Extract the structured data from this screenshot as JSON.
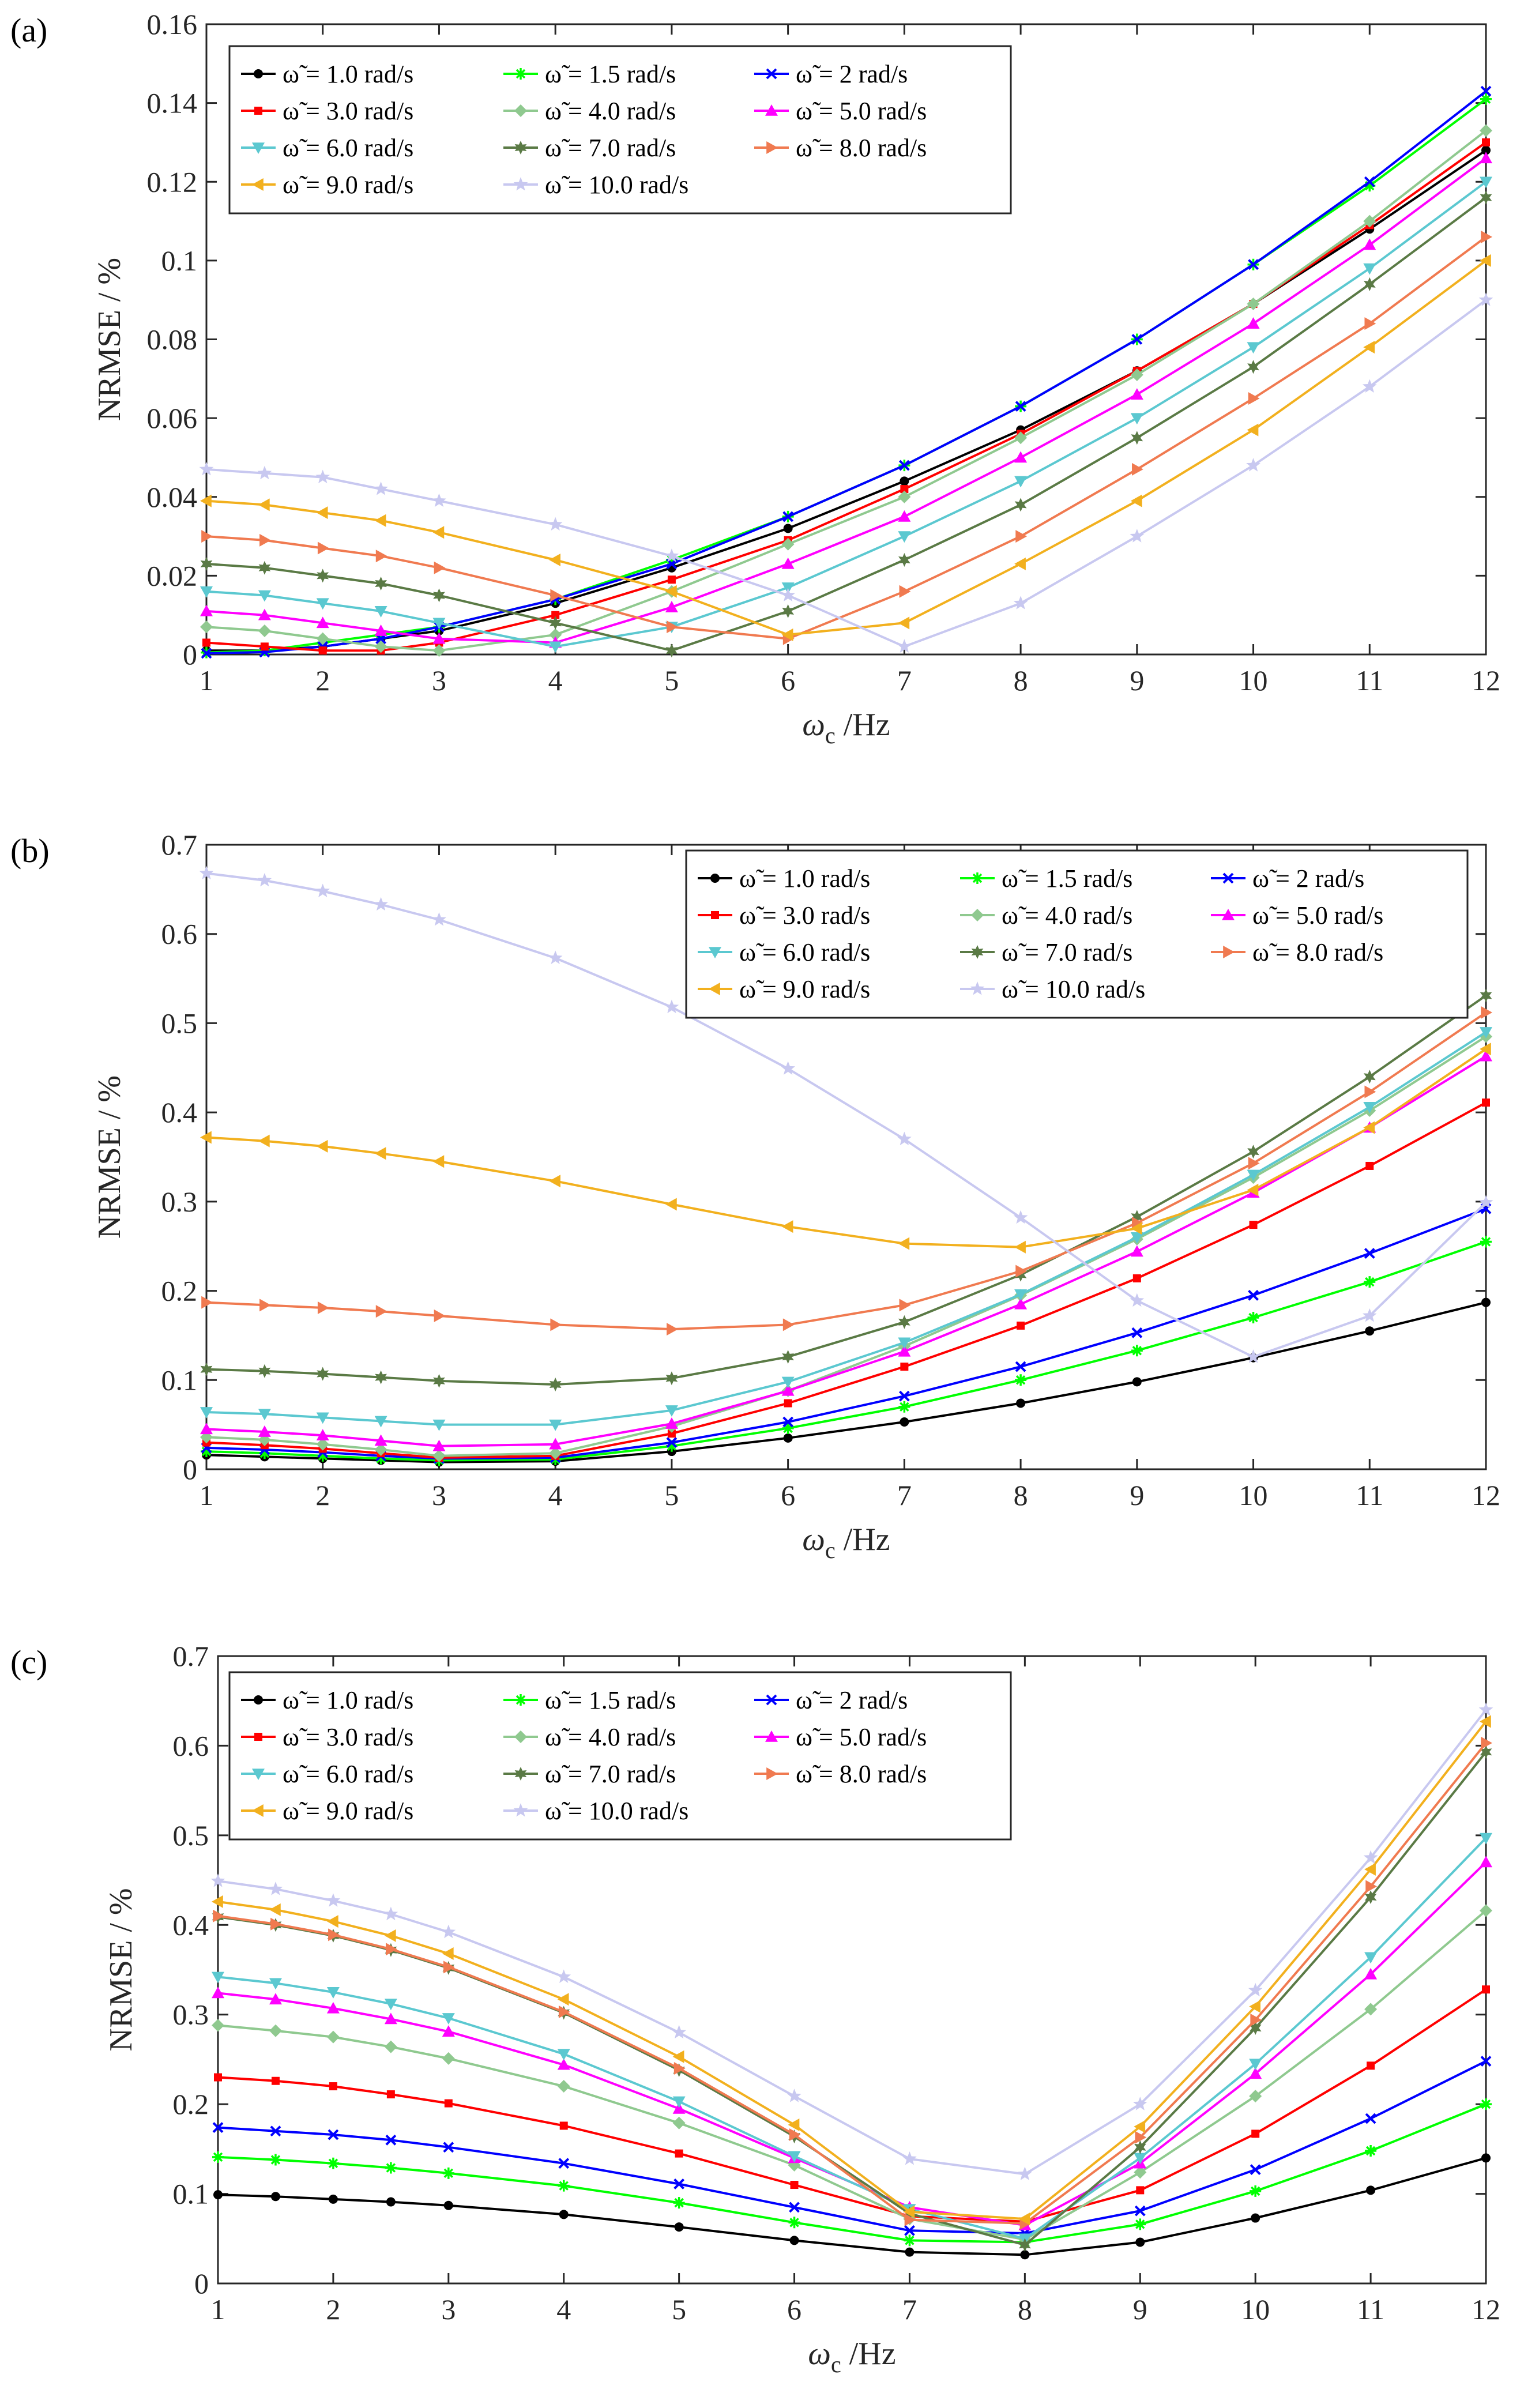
{
  "chart_data": [
    {
      "type": "line",
      "panel_label": "(a)",
      "xlabel": "ω_c /Hz",
      "xlabel_main": "ω",
      "xlabel_sub": "c",
      "xlabel_unit": " /Hz",
      "ylabel": "NRMSE / %",
      "xlim": [
        1,
        12
      ],
      "ylim": [
        0,
        0.16
      ],
      "xticks": [
        1,
        2,
        3,
        4,
        5,
        6,
        7,
        8,
        9,
        10,
        11,
        12
      ],
      "xtick_labels": [
        "1",
        "2",
        "3",
        "4",
        "5",
        "6",
        "7",
        "8",
        "9",
        "10",
        "11",
        "12"
      ],
      "yticks": [
        0,
        0.02,
        0.04,
        0.06,
        0.08,
        0.1,
        0.12,
        0.14,
        0.16
      ],
      "ytick_labels": [
        "0",
        "0.02",
        "0.04",
        "0.06",
        "0.08",
        "0.1",
        "0.12",
        "0.14",
        "0.16"
      ],
      "legend_position": "top-left",
      "x": [
        1,
        1.5,
        2,
        2.5,
        3,
        4,
        5,
        6,
        7,
        8,
        9,
        10,
        11,
        12
      ],
      "series": [
        {
          "name": "ω̃ = 1.0 rad/s",
          "color": "#000000",
          "marker": "dot",
          "values": [
            0.001,
            0.001,
            0.002,
            0.004,
            0.006,
            0.013,
            0.022,
            0.032,
            0.044,
            0.057,
            0.072,
            0.089,
            0.108,
            0.128
          ]
        },
        {
          "name": "ω̃ = 1.5 rad/s",
          "color": "#00ff00",
          "marker": "star",
          "values": [
            0.0005,
            0.001,
            0.003,
            0.005,
            0.007,
            0.014,
            0.024,
            0.035,
            0.048,
            0.063,
            0.08,
            0.099,
            0.119,
            0.141
          ]
        },
        {
          "name": "ω̃ = 2 rad/s",
          "color": "#0000ff",
          "marker": "x",
          "values": [
            0.0003,
            0.0006,
            0.002,
            0.004,
            0.007,
            0.014,
            0.023,
            0.035,
            0.048,
            0.063,
            0.08,
            0.099,
            0.12,
            0.143
          ]
        },
        {
          "name": "ω̃ = 3.0 rad/s",
          "color": "#ff0000",
          "marker": "square",
          "values": [
            0.003,
            0.002,
            0.001,
            0.001,
            0.003,
            0.01,
            0.019,
            0.029,
            0.042,
            0.056,
            0.072,
            0.089,
            0.109,
            0.13
          ]
        },
        {
          "name": "ω̃ = 4.0 rad/s",
          "color": "#8fc98f",
          "marker": "diamond",
          "values": [
            0.007,
            0.006,
            0.004,
            0.002,
            0.001,
            0.005,
            0.016,
            0.028,
            0.04,
            0.055,
            0.071,
            0.089,
            0.11,
            0.133
          ]
        },
        {
          "name": "ω̃ = 5.0 rad/s",
          "color": "#ff00ff",
          "marker": "triangle-up",
          "values": [
            0.011,
            0.01,
            0.008,
            0.006,
            0.004,
            0.003,
            0.012,
            0.023,
            0.035,
            0.05,
            0.066,
            0.084,
            0.104,
            0.126
          ]
        },
        {
          "name": "ω̃ = 6.0 rad/s",
          "color": "#5bc8d0",
          "marker": "triangle-down",
          "values": [
            0.016,
            0.015,
            0.013,
            0.011,
            0.008,
            0.002,
            0.007,
            0.017,
            0.03,
            0.044,
            0.06,
            0.078,
            0.098,
            0.12
          ]
        },
        {
          "name": "ω̃ = 7.0 rad/s",
          "color": "#5a7a45",
          "marker": "hexagram",
          "values": [
            0.023,
            0.022,
            0.02,
            0.018,
            0.015,
            0.008,
            0.001,
            0.011,
            0.024,
            0.038,
            0.055,
            0.073,
            0.094,
            0.116
          ]
        },
        {
          "name": "ω̃ = 8.0 rad/s",
          "color": "#f07a50",
          "marker": "triangle-right",
          "values": [
            0.03,
            0.029,
            0.027,
            0.025,
            0.022,
            0.015,
            0.007,
            0.004,
            0.016,
            0.03,
            0.047,
            0.065,
            0.084,
            0.106
          ]
        },
        {
          "name": "ω̃ = 9.0 rad/s",
          "color": "#f2b01e",
          "marker": "triangle-left",
          "values": [
            0.039,
            0.038,
            0.036,
            0.034,
            0.031,
            0.024,
            0.016,
            0.005,
            0.008,
            0.023,
            0.039,
            0.057,
            0.078,
            0.1
          ]
        },
        {
          "name": "ω̃ = 10.0 rad/s",
          "color": "#c8c8f0",
          "marker": "pentagram",
          "values": [
            0.047,
            0.046,
            0.045,
            0.042,
            0.039,
            0.033,
            0.025,
            0.015,
            0.002,
            0.013,
            0.03,
            0.048,
            0.068,
            0.09
          ]
        }
      ]
    },
    {
      "type": "line",
      "panel_label": "(b)",
      "xlabel": "ω_c /Hz",
      "xlabel_main": "ω",
      "xlabel_sub": "c",
      "xlabel_unit": " /Hz",
      "ylabel": "NRMSE / %",
      "xlim": [
        1,
        12
      ],
      "ylim": [
        0,
        0.7
      ],
      "xticks": [
        1,
        2,
        3,
        4,
        5,
        6,
        7,
        8,
        9,
        10,
        11,
        12
      ],
      "xtick_labels": [
        "1",
        "2",
        "3",
        "4",
        "5",
        "6",
        "7",
        "8",
        "9",
        "10",
        "11",
        "12"
      ],
      "yticks": [
        0,
        0.1,
        0.2,
        0.3,
        0.4,
        0.5,
        0.6,
        0.7
      ],
      "ytick_labels": [
        "0",
        "0.1",
        "0.2",
        "0.3",
        "0.4",
        "0.5",
        "0.6",
        "0.7"
      ],
      "legend_position": "top-right",
      "x": [
        1,
        1.5,
        2,
        2.5,
        3,
        4,
        5,
        6,
        7,
        8,
        9,
        10,
        11,
        12
      ],
      "series": [
        {
          "name": "ω̃ = 1.0 rad/s",
          "color": "#000000",
          "marker": "dot",
          "values": [
            0.016,
            0.014,
            0.012,
            0.01,
            0.008,
            0.009,
            0.02,
            0.035,
            0.053,
            0.074,
            0.098,
            0.125,
            0.155,
            0.187
          ]
        },
        {
          "name": "ω̃ = 1.5 rad/s",
          "color": "#00ff00",
          "marker": "star",
          "values": [
            0.02,
            0.018,
            0.015,
            0.012,
            0.01,
            0.011,
            0.026,
            0.046,
            0.07,
            0.1,
            0.133,
            0.17,
            0.21,
            0.255
          ]
        },
        {
          "name": "ω̃ = 2 rad/s",
          "color": "#0000ff",
          "marker": "x",
          "values": [
            0.024,
            0.022,
            0.019,
            0.015,
            0.012,
            0.013,
            0.03,
            0.053,
            0.082,
            0.115,
            0.153,
            0.195,
            0.242,
            0.292
          ]
        },
        {
          "name": "ω̃ = 3.0 rad/s",
          "color": "#ff0000",
          "marker": "square",
          "values": [
            0.03,
            0.027,
            0.023,
            0.018,
            0.013,
            0.015,
            0.04,
            0.074,
            0.115,
            0.161,
            0.214,
            0.274,
            0.34,
            0.411
          ]
        },
        {
          "name": "ω̃ = 4.0 rad/s",
          "color": "#8fc98f",
          "marker": "diamond",
          "values": [
            0.036,
            0.033,
            0.028,
            0.022,
            0.015,
            0.018,
            0.048,
            0.088,
            0.138,
            0.195,
            0.258,
            0.327,
            0.402,
            0.485
          ]
        },
        {
          "name": "ω̃ = 5.0 rad/s",
          "color": "#ff00ff",
          "marker": "triangle-up",
          "values": [
            0.045,
            0.042,
            0.038,
            0.032,
            0.026,
            0.028,
            0.051,
            0.088,
            0.132,
            0.185,
            0.244,
            0.31,
            0.383,
            0.463
          ]
        },
        {
          "name": "ω̃ = 6.0 rad/s",
          "color": "#5bc8d0",
          "marker": "triangle-down",
          "values": [
            0.064,
            0.062,
            0.058,
            0.054,
            0.05,
            0.05,
            0.066,
            0.098,
            0.142,
            0.196,
            0.26,
            0.33,
            0.406,
            0.49
          ]
        },
        {
          "name": "ω̃ = 7.0 rad/s",
          "color": "#5a7a45",
          "marker": "hexagram",
          "values": [
            0.112,
            0.11,
            0.107,
            0.103,
            0.099,
            0.095,
            0.102,
            0.126,
            0.165,
            0.218,
            0.283,
            0.356,
            0.44,
            0.531
          ]
        },
        {
          "name": "ω̃ = 8.0 rad/s",
          "color": "#f07a50",
          "marker": "triangle-right",
          "values": [
            0.187,
            0.184,
            0.181,
            0.177,
            0.172,
            0.162,
            0.157,
            0.162,
            0.184,
            0.222,
            0.276,
            0.343,
            0.423,
            0.512
          ]
        },
        {
          "name": "ω̃ = 9.0 rad/s",
          "color": "#f2b01e",
          "marker": "triangle-left",
          "values": [
            0.372,
            0.368,
            0.362,
            0.354,
            0.345,
            0.323,
            0.297,
            0.272,
            0.253,
            0.249,
            0.27,
            0.313,
            0.383,
            0.471
          ]
        },
        {
          "name": "ω̃ = 10.0 rad/s",
          "color": "#c8c8f0",
          "marker": "pentagram",
          "values": [
            0.668,
            0.66,
            0.648,
            0.633,
            0.616,
            0.573,
            0.518,
            0.449,
            0.37,
            0.282,
            0.189,
            0.126,
            0.172,
            0.299
          ]
        }
      ]
    },
    {
      "type": "line",
      "panel_label": "(c)",
      "xlabel": "ω_c /Hz",
      "xlabel_main": "ω",
      "xlabel_sub": "c",
      "xlabel_unit": " /Hz",
      "ylabel": "NRMSE / %",
      "xlim": [
        1,
        12
      ],
      "ylim": [
        0,
        0.7
      ],
      "xticks": [
        1,
        2,
        3,
        4,
        5,
        6,
        7,
        8,
        9,
        10,
        11,
        12
      ],
      "xtick_labels": [
        "1",
        "2",
        "3",
        "4",
        "5",
        "6",
        "7",
        "8",
        "9",
        "10",
        "11",
        "12"
      ],
      "yticks": [
        0,
        0.1,
        0.2,
        0.3,
        0.4,
        0.5,
        0.6,
        0.7
      ],
      "ytick_labels": [
        "0",
        "0.1",
        "0.2",
        "0.3",
        "0.4",
        "0.5",
        "0.6",
        "0.7"
      ],
      "legend_position": "top-left",
      "x": [
        1,
        1.5,
        2,
        2.5,
        3,
        4,
        5,
        6,
        7,
        8,
        9,
        10,
        11,
        12
      ],
      "series": [
        {
          "name": "ω̃ = 1.0 rad/s",
          "color": "#000000",
          "marker": "dot",
          "values": [
            0.099,
            0.097,
            0.094,
            0.091,
            0.087,
            0.077,
            0.063,
            0.048,
            0.035,
            0.032,
            0.046,
            0.073,
            0.104,
            0.14
          ]
        },
        {
          "name": "ω̃ = 1.5 rad/s",
          "color": "#00ff00",
          "marker": "star",
          "values": [
            0.141,
            0.138,
            0.134,
            0.129,
            0.123,
            0.109,
            0.09,
            0.068,
            0.048,
            0.046,
            0.066,
            0.103,
            0.148,
            0.2
          ]
        },
        {
          "name": "ω̃ = 2 rad/s",
          "color": "#0000ff",
          "marker": "x",
          "values": [
            0.174,
            0.17,
            0.166,
            0.16,
            0.152,
            0.134,
            0.111,
            0.085,
            0.059,
            0.056,
            0.081,
            0.127,
            0.184,
            0.248
          ]
        },
        {
          "name": "ω̃ = 3.0 rad/s",
          "color": "#ff0000",
          "marker": "square",
          "values": [
            0.23,
            0.226,
            0.22,
            0.211,
            0.201,
            0.176,
            0.145,
            0.11,
            0.075,
            0.069,
            0.104,
            0.167,
            0.243,
            0.328
          ]
        },
        {
          "name": "ω̃ = 4.0 rad/s",
          "color": "#8fc98f",
          "marker": "diamond",
          "values": [
            0.288,
            0.282,
            0.275,
            0.264,
            0.251,
            0.22,
            0.179,
            0.132,
            0.072,
            0.049,
            0.124,
            0.209,
            0.306,
            0.416
          ]
        },
        {
          "name": "ω̃ = 5.0 rad/s",
          "color": "#ff00ff",
          "marker": "triangle-up",
          "values": [
            0.324,
            0.317,
            0.307,
            0.295,
            0.281,
            0.244,
            0.195,
            0.14,
            0.085,
            0.065,
            0.134,
            0.234,
            0.345,
            0.47
          ]
        },
        {
          "name": "ω̃ = 6.0 rad/s",
          "color": "#5bc8d0",
          "marker": "triangle-down",
          "values": [
            0.342,
            0.335,
            0.325,
            0.312,
            0.296,
            0.256,
            0.203,
            0.142,
            0.083,
            0.05,
            0.14,
            0.245,
            0.364,
            0.497
          ]
        },
        {
          "name": "ω̃ = 7.0 rad/s",
          "color": "#5a7a45",
          "marker": "hexagram",
          "values": [
            0.409,
            0.4,
            0.388,
            0.372,
            0.352,
            0.302,
            0.238,
            0.164,
            0.078,
            0.043,
            0.152,
            0.285,
            0.431,
            0.593
          ]
        },
        {
          "name": "ω̃ = 8.0 rad/s",
          "color": "#f07a50",
          "marker": "triangle-right",
          "values": [
            0.41,
            0.401,
            0.389,
            0.373,
            0.353,
            0.303,
            0.24,
            0.166,
            0.071,
            0.067,
            0.163,
            0.294,
            0.443,
            0.603
          ]
        },
        {
          "name": "ω̃ = 9.0 rad/s",
          "color": "#f2b01e",
          "marker": "triangle-left",
          "values": [
            0.426,
            0.417,
            0.404,
            0.388,
            0.368,
            0.317,
            0.253,
            0.177,
            0.08,
            0.072,
            0.175,
            0.309,
            0.462,
            0.627
          ]
        },
        {
          "name": "ω̃ = 10.0 rad/s",
          "color": "#c8c8f0",
          "marker": "pentagram",
          "values": [
            0.449,
            0.44,
            0.427,
            0.412,
            0.392,
            0.342,
            0.28,
            0.209,
            0.139,
            0.122,
            0.2,
            0.327,
            0.475,
            0.64
          ]
        }
      ]
    }
  ]
}
